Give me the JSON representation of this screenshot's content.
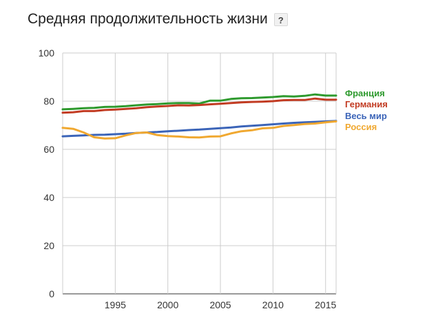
{
  "header": {
    "title": "Средняя продолжительность жизни",
    "help_label": "?"
  },
  "chart_data": {
    "type": "line",
    "title": "Средняя продолжительность жизни",
    "xlabel": "",
    "ylabel": "",
    "xlim": [
      1990,
      2016
    ],
    "ylim": [
      0,
      100
    ],
    "x_ticks": [
      1995,
      2000,
      2005,
      2010,
      2015
    ],
    "x_tick_labels": [
      "1995",
      "2000",
      "2005",
      "2010",
      "2015"
    ],
    "y_ticks": [
      0,
      20,
      40,
      60,
      80,
      100
    ],
    "y_tick_labels": [
      "0",
      "20",
      "40",
      "60",
      "80",
      "100"
    ],
    "grid": true,
    "legend_position": "right",
    "x": [
      1990,
      1991,
      1992,
      1993,
      1994,
      1995,
      1996,
      1997,
      1998,
      1999,
      2000,
      2001,
      2002,
      2003,
      2004,
      2005,
      2006,
      2007,
      2008,
      2009,
      2010,
      2011,
      2012,
      2013,
      2014,
      2015,
      2016
    ],
    "series": [
      {
        "name": "Франция",
        "color": "#2e9a2e",
        "values": [
          76.6,
          76.8,
          77.1,
          77.2,
          77.6,
          77.7,
          77.9,
          78.3,
          78.6,
          78.8,
          79.1,
          79.2,
          79.2,
          79.0,
          80.2,
          80.2,
          80.9,
          81.2,
          81.3,
          81.5,
          81.7,
          82.1,
          81.9,
          82.2,
          82.8,
          82.3,
          82.3
        ]
      },
      {
        "name": "Германия",
        "color": "#c23b22",
        "values": [
          75.2,
          75.4,
          75.9,
          75.9,
          76.3,
          76.5,
          76.8,
          77.1,
          77.5,
          77.8,
          78.0,
          78.3,
          78.2,
          78.4,
          78.7,
          78.9,
          79.2,
          79.5,
          79.7,
          79.8,
          80.0,
          80.4,
          80.5,
          80.5,
          81.1,
          80.6,
          80.6
        ]
      },
      {
        "name": "Весь мир",
        "color": "#3b64b8",
        "values": [
          65.4,
          65.6,
          65.8,
          66.0,
          66.1,
          66.3,
          66.5,
          66.8,
          67.0,
          67.2,
          67.5,
          67.7,
          68.0,
          68.2,
          68.5,
          68.8,
          69.1,
          69.5,
          69.8,
          70.1,
          70.4,
          70.7,
          71.0,
          71.2,
          71.4,
          71.6,
          71.8
        ]
      },
      {
        "name": "Россия",
        "color": "#f0a830",
        "values": [
          68.9,
          68.5,
          67.0,
          65.0,
          64.5,
          64.6,
          65.8,
          66.8,
          67.0,
          65.9,
          65.5,
          65.3,
          65.0,
          64.9,
          65.3,
          65.4,
          66.6,
          67.5,
          67.9,
          68.7,
          68.9,
          69.7,
          70.1,
          70.5,
          70.7,
          71.2,
          71.6
        ]
      }
    ]
  }
}
